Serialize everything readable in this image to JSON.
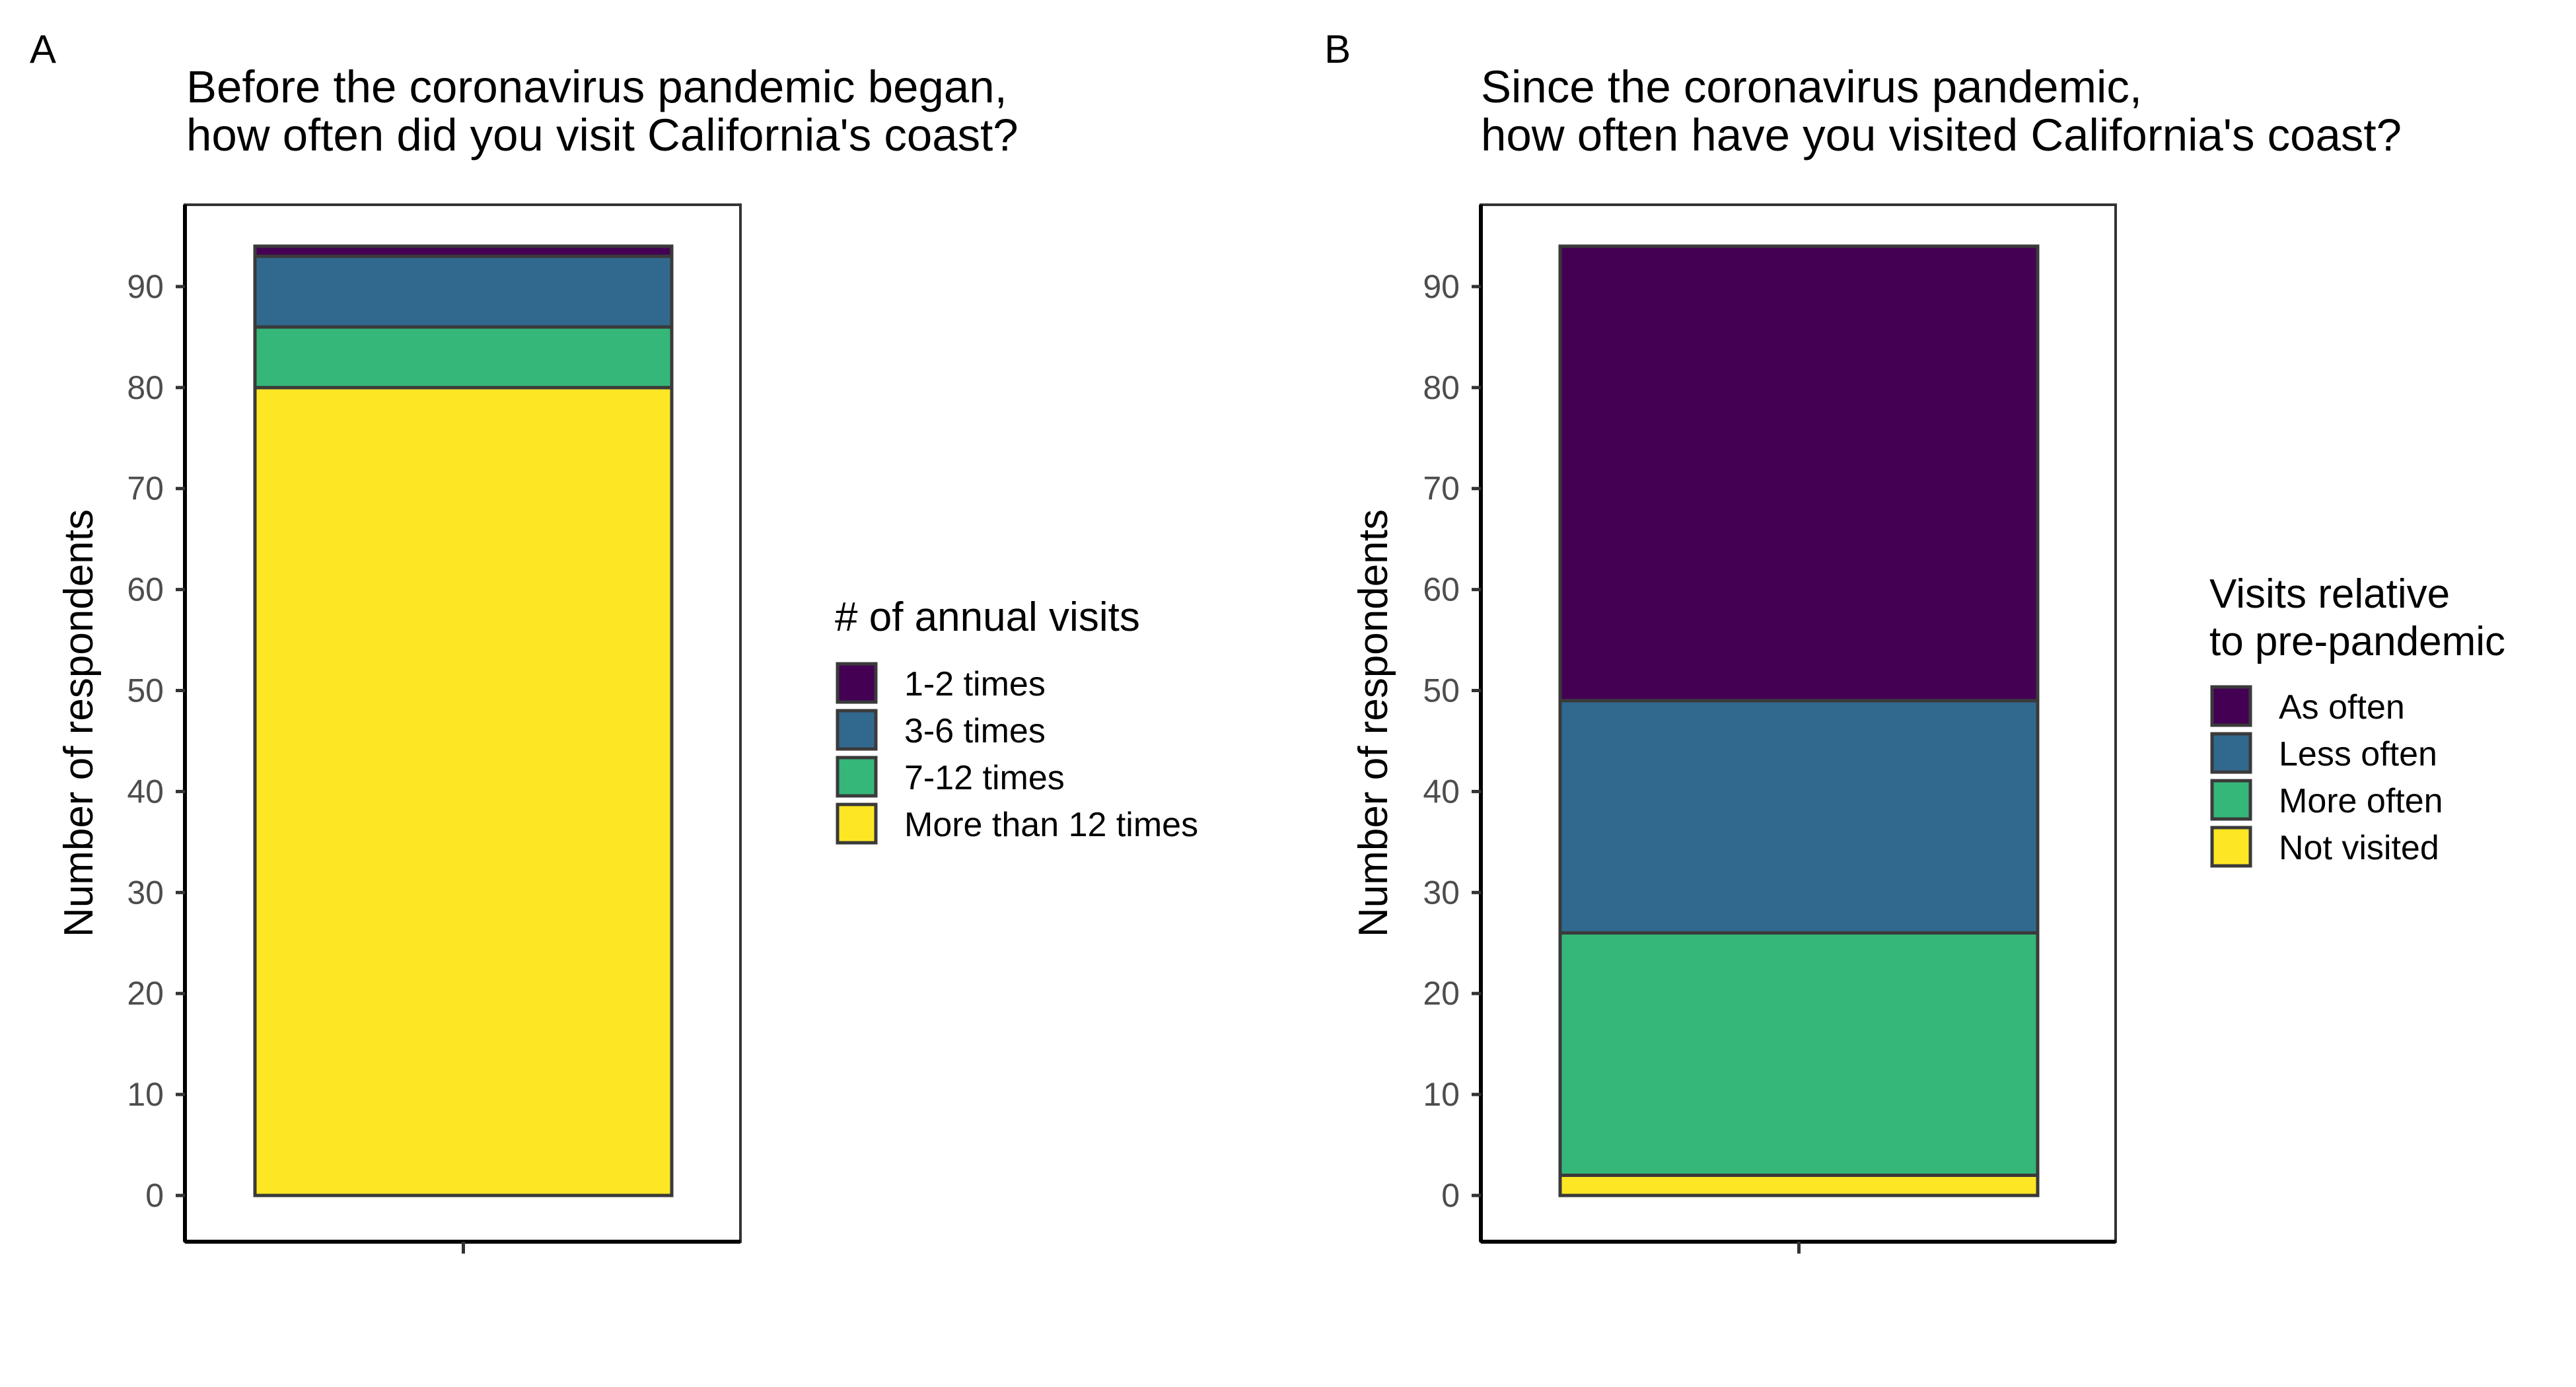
{
  "chart_data": [
    {
      "type": "bar",
      "stacked": true,
      "panel_tag": "A",
      "title_lines": [
        "Before the coronavirus pandemic began,",
        "how often did you visit California's coast?"
      ],
      "xlabel": "",
      "ylabel": "Number of respondents",
      "ylim": [
        0,
        94
      ],
      "yticks": [
        0,
        10,
        20,
        30,
        40,
        50,
        60,
        70,
        80,
        90
      ],
      "legend_title_lines": [
        "# of annual visits"
      ],
      "legend_position": "right",
      "grid": false,
      "categories": [
        ""
      ],
      "series": [
        {
          "name": "1-2 times",
          "color": "#440154",
          "values": [
            1
          ]
        },
        {
          "name": "3-6 times",
          "color": "#31688E",
          "values": [
            7
          ]
        },
        {
          "name": "7-12 times",
          "color": "#35B779",
          "values": [
            6
          ]
        },
        {
          "name": "More than 12 times",
          "color": "#FDE725",
          "values": [
            80
          ]
        }
      ]
    },
    {
      "type": "bar",
      "stacked": true,
      "panel_tag": "B",
      "title_lines": [
        "Since the coronavirus pandemic,",
        "how often have you visited California's coast?"
      ],
      "xlabel": "",
      "ylabel": "Number of respondents",
      "ylim": [
        0,
        94
      ],
      "yticks": [
        0,
        10,
        20,
        30,
        40,
        50,
        60,
        70,
        80,
        90
      ],
      "legend_title_lines": [
        "Visits relative",
        "to pre-pandemic"
      ],
      "legend_position": "right",
      "grid": false,
      "categories": [
        ""
      ],
      "series": [
        {
          "name": "As often",
          "color": "#440154",
          "values": [
            45
          ]
        },
        {
          "name": "Less often",
          "color": "#31688E",
          "values": [
            23
          ]
        },
        {
          "name": "More often",
          "color": "#35B779",
          "values": [
            24
          ]
        },
        {
          "name": "Not visited",
          "color": "#FDE725",
          "values": [
            2
          ]
        }
      ]
    }
  ]
}
